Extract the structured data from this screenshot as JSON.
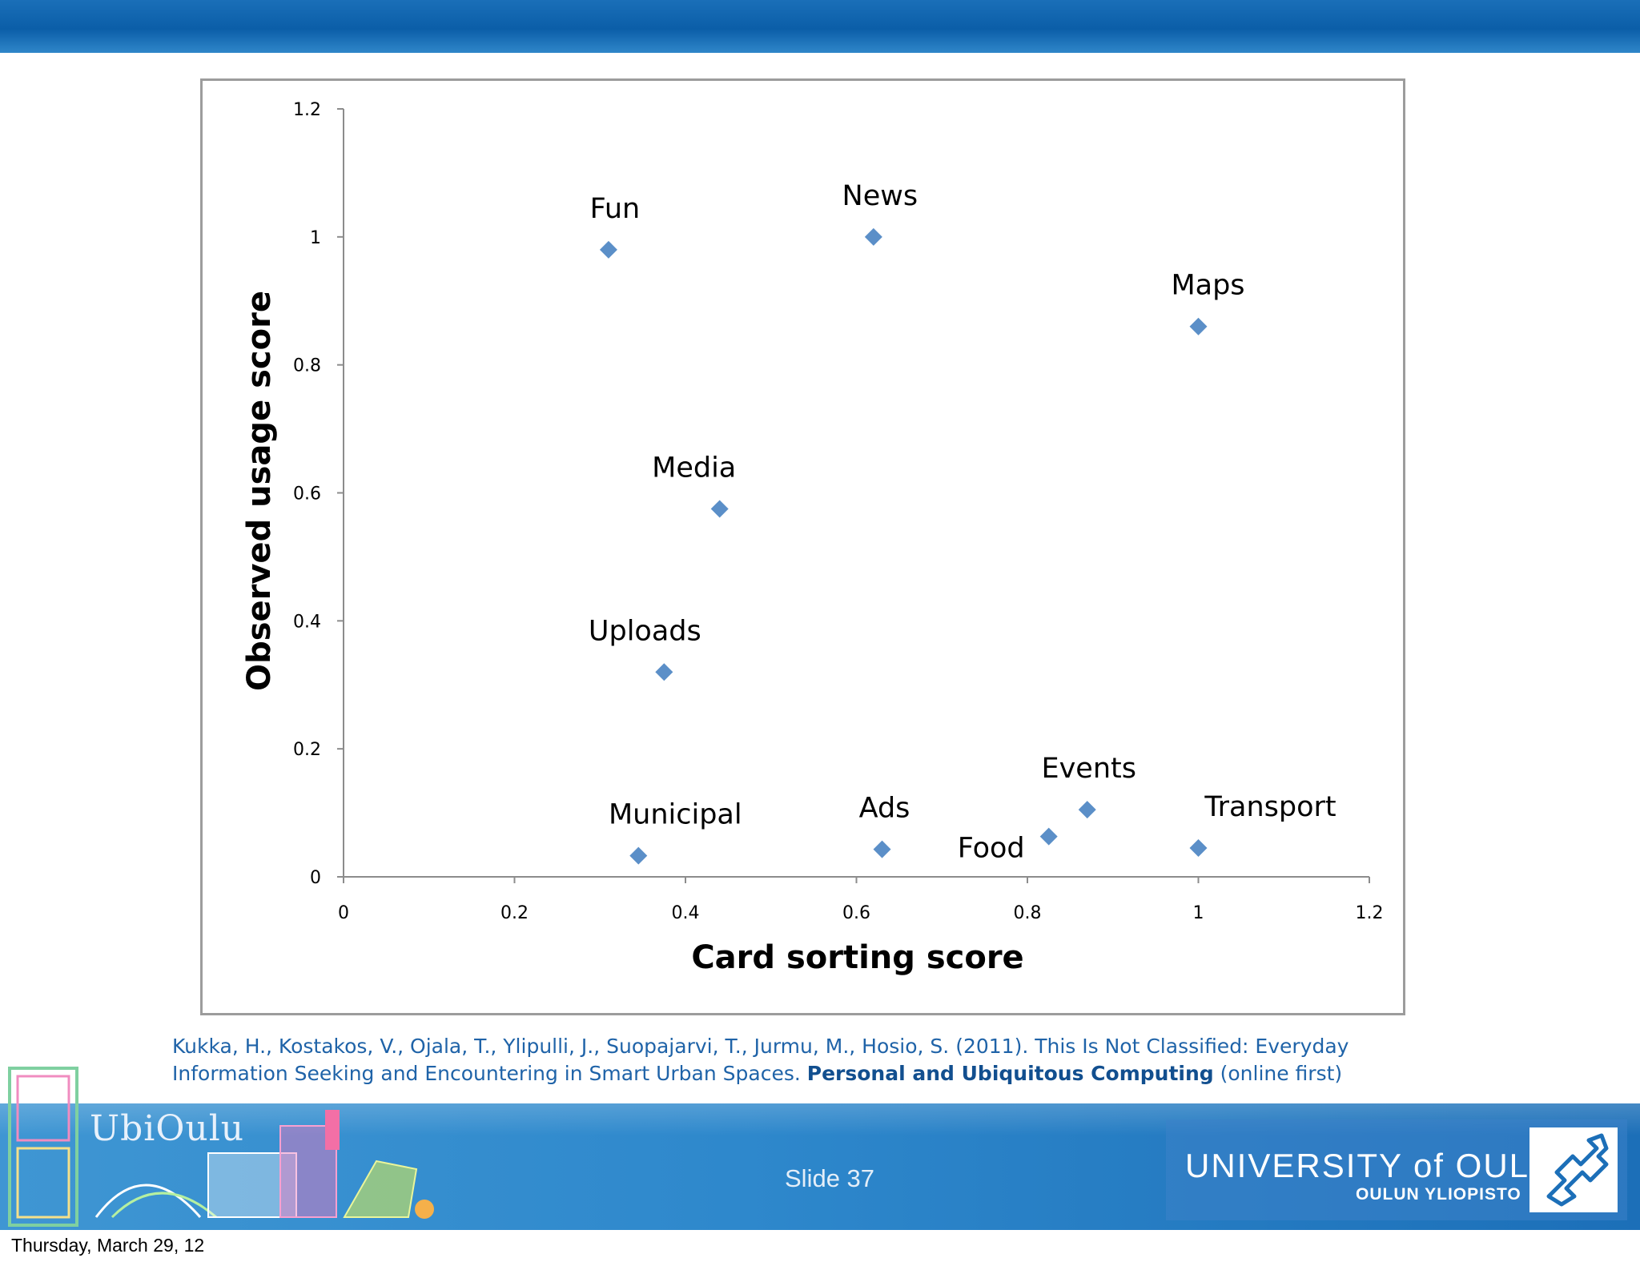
{
  "chart_data": {
    "type": "scatter",
    "xlabel": "Card sorting score",
    "ylabel": "Observed usage score",
    "xlim": [
      0,
      1.2
    ],
    "ylim": [
      0,
      1.2
    ],
    "xticks": [
      "0",
      "0.2",
      "0.4",
      "0.6",
      "0.8",
      "1",
      "1.2"
    ],
    "yticks": [
      "0",
      "0.2",
      "0.4",
      "0.6",
      "0.8",
      "1",
      "1.2"
    ],
    "marker": "diamond",
    "color": "#5b8fc8",
    "points": [
      {
        "label": "Fun",
        "x": 0.31,
        "y": 0.98
      },
      {
        "label": "News",
        "x": 0.62,
        "y": 1.0
      },
      {
        "label": "Maps",
        "x": 1.0,
        "y": 0.86
      },
      {
        "label": "Media",
        "x": 0.44,
        "y": 0.575
      },
      {
        "label": "Uploads",
        "x": 0.375,
        "y": 0.32
      },
      {
        "label": "Municipal",
        "x": 0.345,
        "y": 0.033
      },
      {
        "label": "Ads",
        "x": 0.63,
        "y": 0.043
      },
      {
        "label": "Food",
        "x": 0.825,
        "y": 0.063
      },
      {
        "label": "Events",
        "x": 0.87,
        "y": 0.105
      },
      {
        "label": "Transport",
        "x": 1.0,
        "y": 0.045
      }
    ]
  },
  "citation": {
    "line1": "Kukka, H., Kostakos, V., Ojala, T., Ylipulli, J., Suopajarvi, T., Jurmu, M., Hosio, S. (2011). This Is Not Classified: Everyday",
    "line2_text": "Information Seeking and Encountering in Smart Urban Spaces. ",
    "journal": "Personal and Ubiquitous Computing",
    "suffix": " (online first)"
  },
  "footer": {
    "brand": "UbiOulu",
    "slide": "Slide  37",
    "university": "UNIVERSITY of OULU",
    "university_sub": "OULUN YLIOPISTO"
  },
  "date": "Thursday, March 29, 12"
}
